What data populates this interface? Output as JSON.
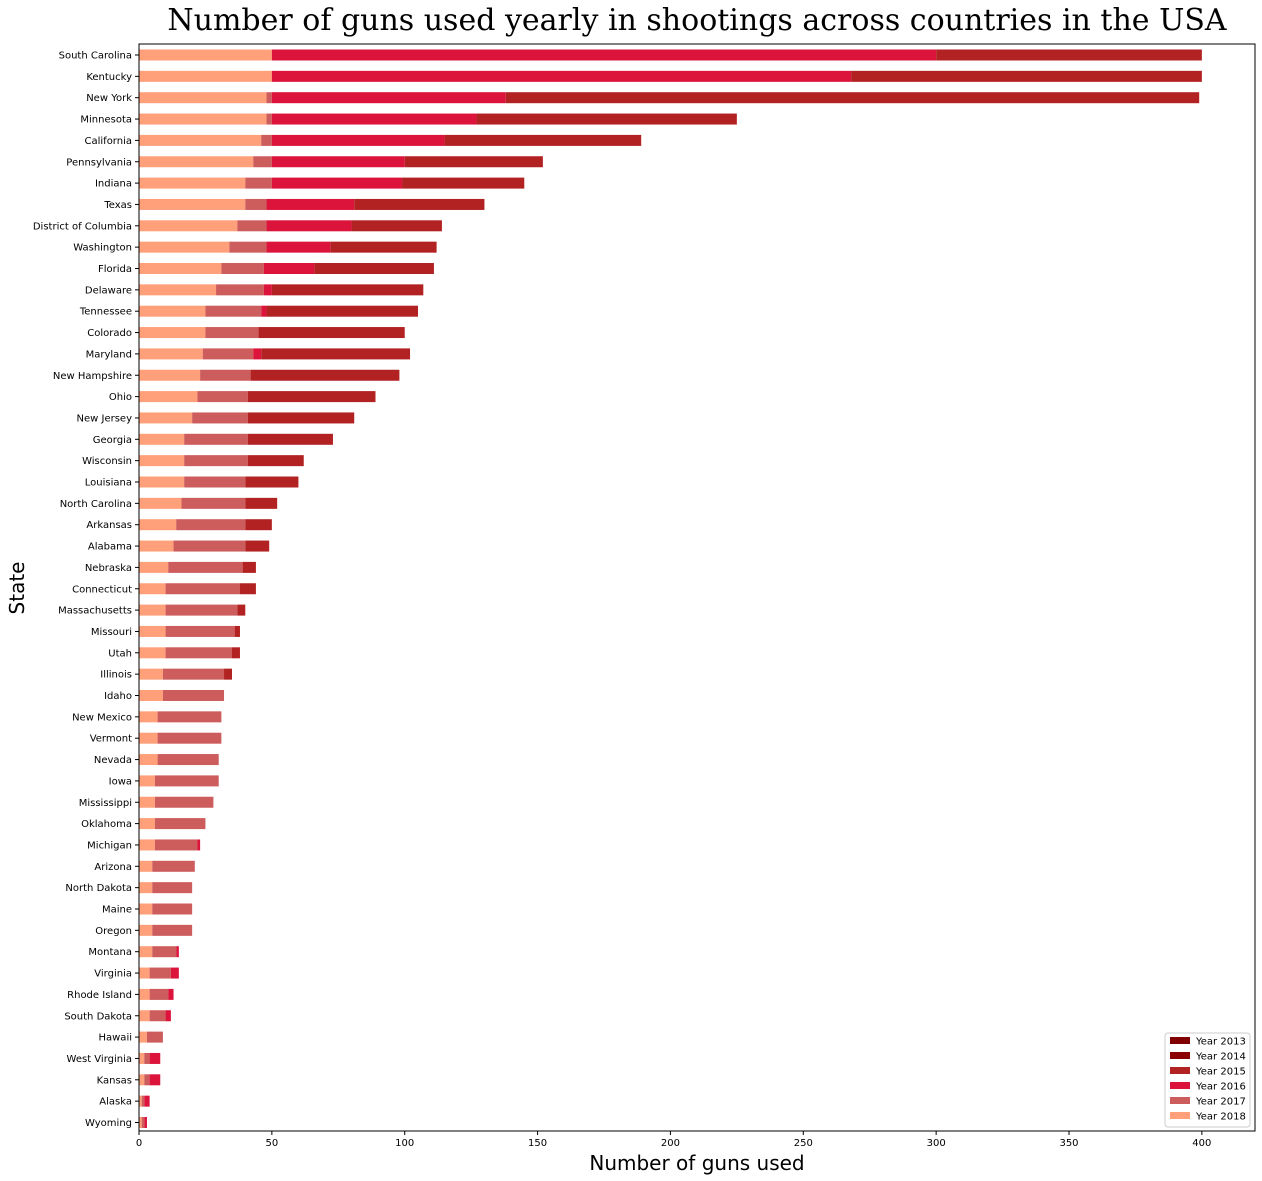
{
  "chart_data": {
    "type": "bar",
    "orientation": "horizontal",
    "stacked": true,
    "title": "Number of guns used yearly in shootings across countries in the USA",
    "xlabel": "Number of guns used",
    "ylabel": "State",
    "xlim": [
      0,
      420
    ],
    "xticks": [
      0,
      50,
      100,
      150,
      200,
      250,
      300,
      350,
      400
    ],
    "legend_position": "lower-right",
    "categories": [
      "South Carolina",
      "Kentucky",
      "New York",
      "Minnesota",
      "California",
      "Pennsylvania",
      "Indiana",
      "Texas",
      "District of Columbia",
      "Washington",
      "Florida",
      "Delaware",
      "Tennessee",
      "Colorado",
      "Maryland",
      "New Hampshire",
      "Ohio",
      "New Jersey",
      "Georgia",
      "Wisconsin",
      "Louisiana",
      "North Carolina",
      "Arkansas",
      "Alabama",
      "Nebraska",
      "Connecticut",
      "Massachusetts",
      "Missouri",
      "Utah",
      "Illinois",
      "Idaho",
      "New Mexico",
      "Vermont",
      "Nevada",
      "Iowa",
      "Mississippi",
      "Oklahoma",
      "Michigan",
      "Arizona",
      "North Dakota",
      "Maine",
      "Oregon",
      "Montana",
      "Virginia",
      "Rhode Island",
      "South Dakota",
      "Hawaii",
      "West Virginia",
      "Kansas",
      "Alaska",
      "Wyoming"
    ],
    "series": [
      {
        "name": "Year 2018",
        "color": "#FFA07A",
        "values": [
          50,
          50,
          48,
          48,
          46,
          43,
          40,
          40,
          37,
          34,
          31,
          29,
          25,
          25,
          24,
          23,
          22,
          20,
          17,
          17,
          17,
          16,
          14,
          13,
          11,
          10,
          10,
          10,
          10,
          9,
          9,
          7,
          7,
          7,
          6,
          6,
          6,
          6,
          5,
          5,
          5,
          5,
          5,
          4,
          4,
          4,
          3,
          2,
          2,
          1,
          1
        ]
      },
      {
        "name": "Year 2017",
        "color": "#CD5C5C",
        "values": [
          0,
          0,
          2,
          2,
          4,
          7,
          10,
          8,
          11,
          14,
          16,
          18,
          21,
          20,
          19,
          19,
          19,
          21,
          24,
          24,
          23,
          24,
          26,
          27,
          28,
          28,
          27,
          26,
          25,
          23,
          23,
          24,
          24,
          23,
          24,
          22,
          19,
          16,
          16,
          15,
          15,
          15,
          9,
          8,
          7,
          6,
          6,
          2,
          2,
          1,
          1
        ]
      },
      {
        "name": "Year 2016",
        "color": "#DC143C",
        "values": [
          250,
          218,
          88,
          77,
          65,
          50,
          49,
          33,
          32,
          24,
          19,
          3,
          2,
          0,
          3,
          0,
          0,
          0,
          0,
          0,
          0,
          0,
          0,
          0,
          0,
          0,
          0,
          0,
          0,
          0,
          0,
          0,
          0,
          0,
          0,
          0,
          0,
          1,
          0,
          0,
          0,
          0,
          1,
          3,
          2,
          2,
          0,
          4,
          4,
          2,
          1
        ]
      },
      {
        "name": "Year 2015",
        "color": "#B22222",
        "values": [
          100,
          132,
          261,
          98,
          74,
          52,
          46,
          49,
          34,
          40,
          45,
          57,
          57,
          55,
          56,
          56,
          48,
          40,
          32,
          21,
          20,
          12,
          10,
          9,
          5,
          6,
          3,
          2,
          3,
          3,
          0,
          0,
          0,
          0,
          0,
          0,
          0,
          0,
          0,
          0,
          0,
          0,
          0,
          0,
          0,
          0,
          0,
          0,
          0,
          0,
          0
        ]
      },
      {
        "name": "Year 2014",
        "color": "#8B0000",
        "values": [
          0,
          0,
          0,
          0,
          0,
          0,
          0,
          0,
          0,
          0,
          0,
          0,
          0,
          0,
          0,
          0,
          0,
          0,
          0,
          0,
          0,
          0,
          0,
          0,
          0,
          0,
          0,
          0,
          0,
          0,
          0,
          0,
          0,
          0,
          0,
          0,
          0,
          0,
          0,
          0,
          0,
          0,
          0,
          0,
          0,
          0,
          0,
          0,
          0,
          0,
          0
        ]
      },
      {
        "name": "Year 2013",
        "color": "#800000",
        "values": [
          0,
          0,
          0,
          0,
          0,
          0,
          0,
          0,
          0,
          0,
          0,
          0,
          0,
          0,
          0,
          0,
          0,
          0,
          0,
          0,
          0,
          0,
          0,
          0,
          0,
          0,
          0,
          0,
          0,
          0,
          0,
          0,
          0,
          0,
          0,
          0,
          0,
          0,
          0,
          0,
          0,
          0,
          0,
          0,
          0,
          0,
          0,
          0,
          0,
          0,
          0
        ]
      }
    ],
    "legend_order": [
      "Year 2013",
      "Year 2014",
      "Year 2015",
      "Year 2016",
      "Year 2017",
      "Year 2018"
    ]
  }
}
